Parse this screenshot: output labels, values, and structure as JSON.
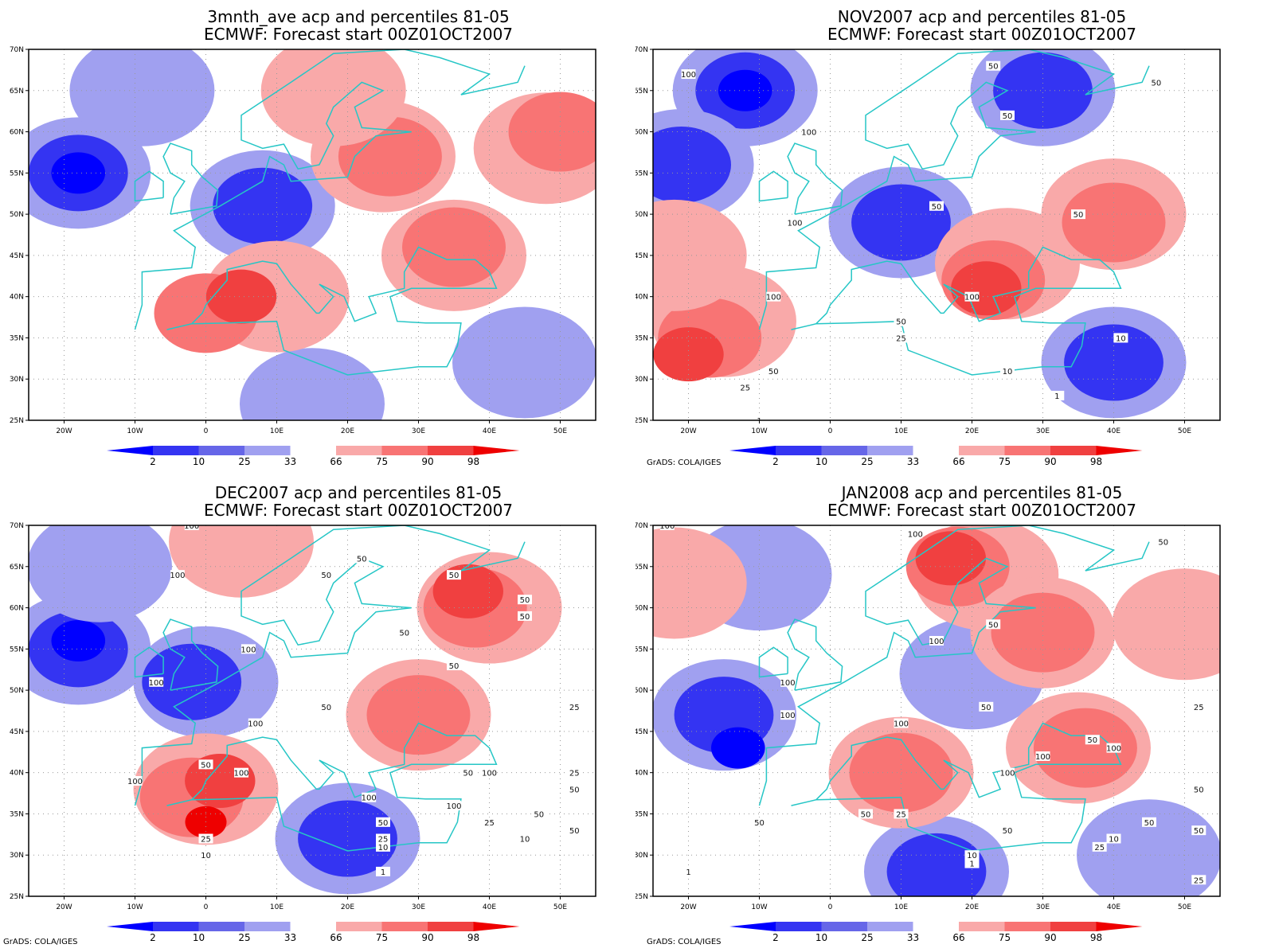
{
  "colors": {
    "frame": "#000000",
    "coast": "#26c6c6",
    "grid": "#999999",
    "contour": "#111111",
    "blue_2": "#0000ff",
    "blue_10": "#3434f2",
    "blue_25": "#6666e8",
    "blue_33": "#a0a0f0",
    "red_66": "#f9a9a9",
    "red_75": "#f87474",
    "red_90": "#f04040",
    "red_98": "#ee0000"
  },
  "axes": {
    "lat_labels": [
      "70N",
      "65N",
      "60N",
      "55N",
      "50N",
      "45N",
      "40N",
      "35N",
      "30N",
      "25N"
    ],
    "lon_labels": [
      "20W",
      "10W",
      "0",
      "10E",
      "20E",
      "30E",
      "40E",
      "50E"
    ],
    "lon_range": [
      -25,
      55
    ],
    "lat_range": [
      25,
      70
    ]
  },
  "colorbar": {
    "labels": [
      "2",
      "10",
      "25",
      "33",
      "66",
      "75",
      "90",
      "98"
    ]
  },
  "credit": "GrADS: COLA/IGES",
  "panels": [
    {
      "title_line1": "3mnth_ave acp and percentiles 81-05",
      "title_line2": "ECMWF: Forecast start 00Z01OCT2007",
      "show_credit": false,
      "chart_data": {
        "type": "heatmap",
        "x_unit": "longitude (deg)",
        "y_unit": "latitude (deg)",
        "regions": [
          {
            "category": "33",
            "lon": -18,
            "lat": 55
          },
          {
            "category": "10",
            "lon": -18,
            "lat": 55
          },
          {
            "category": "2",
            "lon": -18,
            "lat": 55
          },
          {
            "category": "33",
            "lon": 8,
            "lat": 51
          },
          {
            "category": "10",
            "lon": 8,
            "lat": 51
          },
          {
            "category": "33",
            "lon": -9,
            "lat": 65
          },
          {
            "category": "33",
            "lon": 45,
            "lat": 32
          },
          {
            "category": "33",
            "lon": 15,
            "lat": 27
          },
          {
            "category": "66",
            "lon": 10,
            "lat": 40
          },
          {
            "category": "75",
            "lon": 0,
            "lat": 38
          },
          {
            "category": "90",
            "lon": 5,
            "lat": 40
          },
          {
            "category": "66",
            "lon": 35,
            "lat": 45
          },
          {
            "category": "75",
            "lon": 35,
            "lat": 46
          },
          {
            "category": "66",
            "lon": 25,
            "lat": 57
          },
          {
            "category": "75",
            "lon": 26,
            "lat": 57
          },
          {
            "category": "66",
            "lon": 48,
            "lat": 58
          },
          {
            "category": "75",
            "lon": 50,
            "lat": 60
          },
          {
            "category": "66",
            "lon": 18,
            "lat": 65
          }
        ],
        "contours": []
      }
    },
    {
      "title_line1": "NOV2007 acp and percentiles 81-05",
      "title_line2": "ECMWF: Forecast start 00Z01OCT2007",
      "show_credit": true,
      "chart_data": {
        "type": "heatmap",
        "x_unit": "longitude (deg)",
        "y_unit": "latitude (deg)",
        "regions": [
          {
            "category": "33",
            "lon": -12,
            "lat": 65
          },
          {
            "category": "10",
            "lon": -12,
            "lat": 65
          },
          {
            "category": "2",
            "lon": -12,
            "lat": 65
          },
          {
            "category": "33",
            "lon": 30,
            "lat": 65
          },
          {
            "category": "10",
            "lon": 30,
            "lat": 65
          },
          {
            "category": "33",
            "lon": -21,
            "lat": 56
          },
          {
            "category": "10",
            "lon": -21,
            "lat": 56
          },
          {
            "category": "33",
            "lon": 10,
            "lat": 49
          },
          {
            "category": "10",
            "lon": 10,
            "lat": 49
          },
          {
            "category": "33",
            "lon": 40,
            "lat": 32
          },
          {
            "category": "10",
            "lon": 40,
            "lat": 32
          },
          {
            "category": "66",
            "lon": -15,
            "lat": 37
          },
          {
            "category": "75",
            "lon": -17,
            "lat": 35
          },
          {
            "category": "90",
            "lon": -20,
            "lat": 33
          },
          {
            "category": "66",
            "lon": 25,
            "lat": 44
          },
          {
            "category": "75",
            "lon": 23,
            "lat": 42
          },
          {
            "category": "90",
            "lon": 22,
            "lat": 41
          },
          {
            "category": "66",
            "lon": 40,
            "lat": 50
          },
          {
            "category": "75",
            "lon": 40,
            "lat": 49
          },
          {
            "category": "66",
            "lon": -22,
            "lat": 45
          }
        ],
        "contours": [
          {
            "level": "100",
            "lon": -20,
            "lat": 67
          },
          {
            "level": "100",
            "lon": -3,
            "lat": 60
          },
          {
            "level": "100",
            "lon": -5,
            "lat": 49
          },
          {
            "level": "100",
            "lon": -8,
            "lat": 40
          },
          {
            "level": "100",
            "lon": 20,
            "lat": 40
          },
          {
            "level": "50",
            "lon": 23,
            "lat": 68
          },
          {
            "level": "50",
            "lon": 46,
            "lat": 66
          },
          {
            "level": "50",
            "lon": 25,
            "lat": 62
          },
          {
            "level": "50",
            "lon": 15,
            "lat": 51
          },
          {
            "level": "50",
            "lon": 35,
            "lat": 50
          },
          {
            "level": "50",
            "lon": -8,
            "lat": 31
          },
          {
            "level": "50",
            "lon": 10,
            "lat": 37
          },
          {
            "level": "25",
            "lon": -12,
            "lat": 29
          },
          {
            "level": "25",
            "lon": 10,
            "lat": 35
          },
          {
            "level": "10",
            "lon": 25,
            "lat": 31
          },
          {
            "level": "10",
            "lon": 41,
            "lat": 35
          },
          {
            "level": "1",
            "lon": -10,
            "lat": 25
          },
          {
            "level": "1",
            "lon": 32,
            "lat": 28
          }
        ]
      }
    },
    {
      "title_line1": "DEC2007 acp and percentiles 81-05",
      "title_line2": "ECMWF: Forecast start 00Z01OCT2007",
      "show_credit": true,
      "chart_data": {
        "type": "heatmap",
        "x_unit": "longitude (deg)",
        "y_unit": "latitude (deg)",
        "regions": [
          {
            "category": "33",
            "lon": -18,
            "lat": 55
          },
          {
            "category": "10",
            "lon": -18,
            "lat": 55
          },
          {
            "category": "2",
            "lon": -18,
            "lat": 56
          },
          {
            "category": "33",
            "lon": 0,
            "lat": 51
          },
          {
            "category": "10",
            "lon": -2,
            "lat": 51
          },
          {
            "category": "33",
            "lon": 20,
            "lat": 32
          },
          {
            "category": "10",
            "lon": 20,
            "lat": 32
          },
          {
            "category": "33",
            "lon": -15,
            "lat": 65
          },
          {
            "category": "66",
            "lon": 0,
            "lat": 38
          },
          {
            "category": "75",
            "lon": -2,
            "lat": 37
          },
          {
            "category": "90",
            "lon": 2,
            "lat": 39
          },
          {
            "category": "98",
            "lon": 0,
            "lat": 34
          },
          {
            "category": "66",
            "lon": 40,
            "lat": 60
          },
          {
            "category": "75",
            "lon": 38,
            "lat": 60
          },
          {
            "category": "90",
            "lon": 37,
            "lat": 62
          },
          {
            "category": "66",
            "lon": 30,
            "lat": 47
          },
          {
            "category": "75",
            "lon": 30,
            "lat": 47
          },
          {
            "category": "66",
            "lon": 5,
            "lat": 68
          }
        ],
        "contours": [
          {
            "level": "100",
            "lon": -2,
            "lat": 70
          },
          {
            "level": "100",
            "lon": -4,
            "lat": 64
          },
          {
            "level": "100",
            "lon": 6,
            "lat": 55
          },
          {
            "level": "100",
            "lon": -7,
            "lat": 51
          },
          {
            "level": "100",
            "lon": -10,
            "lat": 39
          },
          {
            "level": "100",
            "lon": 5,
            "lat": 40
          },
          {
            "level": "100",
            "lon": 7,
            "lat": 46
          },
          {
            "level": "100",
            "lon": 40,
            "lat": 40
          },
          {
            "level": "100",
            "lon": 35,
            "lat": 36
          },
          {
            "level": "100",
            "lon": 23,
            "lat": 37
          },
          {
            "level": "50",
            "lon": 22,
            "lat": 66
          },
          {
            "level": "50",
            "lon": 17,
            "lat": 64
          },
          {
            "level": "50",
            "lon": 35,
            "lat": 64
          },
          {
            "level": "50",
            "lon": 45,
            "lat": 61
          },
          {
            "level": "50",
            "lon": 45,
            "lat": 59
          },
          {
            "level": "50",
            "lon": 28,
            "lat": 57
          },
          {
            "level": "50",
            "lon": 35,
            "lat": 53
          },
          {
            "level": "50",
            "lon": 17,
            "lat": 48
          },
          {
            "level": "50",
            "lon": 0,
            "lat": 41
          },
          {
            "level": "50",
            "lon": 37,
            "lat": 40
          },
          {
            "level": "50",
            "lon": 25,
            "lat": 34
          },
          {
            "level": "50",
            "lon": 47,
            "lat": 35
          },
          {
            "level": "50",
            "lon": 52,
            "lat": 33
          },
          {
            "level": "50",
            "lon": 52,
            "lat": 38
          },
          {
            "level": "25",
            "lon": 0,
            "lat": 32
          },
          {
            "level": "25",
            "lon": 25,
            "lat": 32
          },
          {
            "level": "25",
            "lon": 40,
            "lat": 34
          },
          {
            "level": "25",
            "lon": 52,
            "lat": 40
          },
          {
            "level": "25",
            "lon": 52,
            "lat": 48
          },
          {
            "level": "10",
            "lon": 0,
            "lat": 30
          },
          {
            "level": "10",
            "lon": 25,
            "lat": 31
          },
          {
            "level": "10",
            "lon": 45,
            "lat": 32
          },
          {
            "level": "1",
            "lon": 25,
            "lat": 28
          }
        ]
      }
    },
    {
      "title_line1": "JAN2008 acp and percentiles 81-05",
      "title_line2": "ECMWF: Forecast start 00Z01OCT2007",
      "show_credit": true,
      "chart_data": {
        "type": "heatmap",
        "x_unit": "longitude (deg)",
        "y_unit": "latitude (deg)",
        "regions": [
          {
            "category": "33",
            "lon": -15,
            "lat": 47
          },
          {
            "category": "10",
            "lon": -15,
            "lat": 47
          },
          {
            "category": "2",
            "lon": -13,
            "lat": 43
          },
          {
            "category": "33",
            "lon": 20,
            "lat": 52
          },
          {
            "category": "33",
            "lon": 15,
            "lat": 28
          },
          {
            "category": "10",
            "lon": 15,
            "lat": 28
          },
          {
            "category": "33",
            "lon": 45,
            "lat": 30
          },
          {
            "category": "33",
            "lon": -10,
            "lat": 64
          },
          {
            "category": "66",
            "lon": 10,
            "lat": 40
          },
          {
            "category": "75",
            "lon": 10,
            "lat": 40
          },
          {
            "category": "66",
            "lon": 22,
            "lat": 64
          },
          {
            "category": "75",
            "lon": 18,
            "lat": 65
          },
          {
            "category": "90",
            "lon": 17,
            "lat": 66
          },
          {
            "category": "66",
            "lon": 30,
            "lat": 57
          },
          {
            "category": "75",
            "lon": 30,
            "lat": 57
          },
          {
            "category": "66",
            "lon": 35,
            "lat": 43
          },
          {
            "category": "75",
            "lon": 36,
            "lat": 43
          },
          {
            "category": "66",
            "lon": 50,
            "lat": 58
          },
          {
            "category": "66",
            "lon": -22,
            "lat": 63
          }
        ],
        "contours": [
          {
            "level": "100",
            "lon": -23,
            "lat": 70
          },
          {
            "level": "100",
            "lon": 12,
            "lat": 69
          },
          {
            "level": "100",
            "lon": 15,
            "lat": 56
          },
          {
            "level": "100",
            "lon": -6,
            "lat": 51
          },
          {
            "level": "100",
            "lon": -6,
            "lat": 47
          },
          {
            "level": "100",
            "lon": 10,
            "lat": 46
          },
          {
            "level": "100",
            "lon": 30,
            "lat": 42
          },
          {
            "level": "100",
            "lon": 40,
            "lat": 43
          },
          {
            "level": "100",
            "lon": 25,
            "lat": 40
          },
          {
            "level": "50",
            "lon": 47,
            "lat": 68
          },
          {
            "level": "50",
            "lon": 23,
            "lat": 58
          },
          {
            "level": "50",
            "lon": 22,
            "lat": 48
          },
          {
            "level": "50",
            "lon": 37,
            "lat": 44
          },
          {
            "level": "50",
            "lon": 5,
            "lat": 35
          },
          {
            "level": "50",
            "lon": -10,
            "lat": 34
          },
          {
            "level": "50",
            "lon": 25,
            "lat": 33
          },
          {
            "level": "50",
            "lon": 45,
            "lat": 34
          },
          {
            "level": "50",
            "lon": 52,
            "lat": 38
          },
          {
            "level": "50",
            "lon": 52,
            "lat": 33
          },
          {
            "level": "25",
            "lon": 52,
            "lat": 48
          },
          {
            "level": "25",
            "lon": 10,
            "lat": 35
          },
          {
            "level": "25",
            "lon": 38,
            "lat": 31
          },
          {
            "level": "25",
            "lon": 52,
            "lat": 27
          },
          {
            "level": "10",
            "lon": 20,
            "lat": 30
          },
          {
            "level": "10",
            "lon": 40,
            "lat": 32
          },
          {
            "level": "1",
            "lon": -20,
            "lat": 28
          },
          {
            "level": "1",
            "lon": 20,
            "lat": 29
          }
        ]
      }
    }
  ]
}
